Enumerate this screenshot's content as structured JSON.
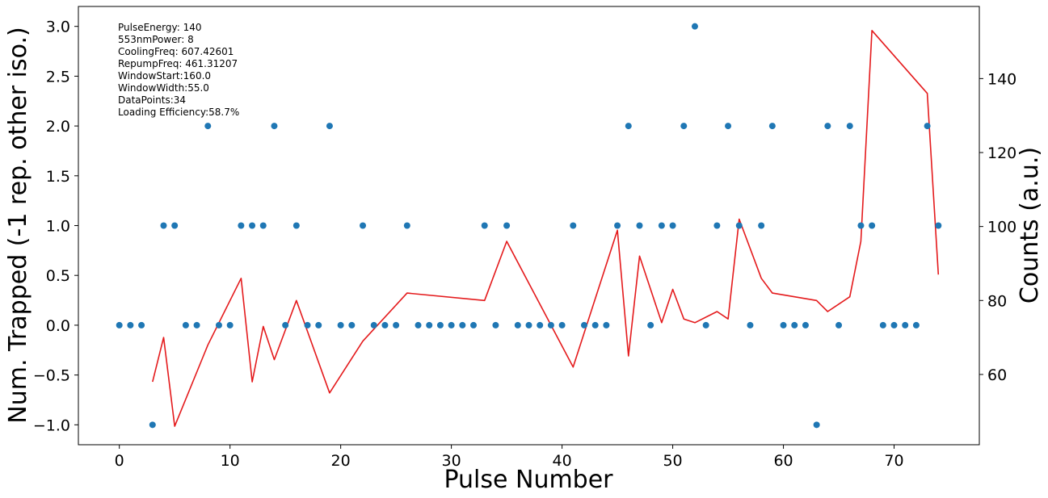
{
  "chart_data": {
    "type": "scatter",
    "xlabel": "Pulse Number",
    "ylabel": "Num. Trapped (-1 rep. other iso.)",
    "ylabel_right": "Counts (a.u.)",
    "xlim": [
      -3.7,
      77.7
    ],
    "ylim": [
      -1.2,
      3.2
    ],
    "ylim_right": [
      41,
      159.5
    ],
    "x_ticks": [
      0,
      10,
      20,
      30,
      40,
      50,
      60,
      70
    ],
    "y_ticks": [
      -1.0,
      -0.5,
      0.0,
      0.5,
      1.0,
      1.5,
      2.0,
      2.5,
      3.0
    ],
    "y_tick_labels": [
      "−1.0",
      "−0.5",
      "0.0",
      "0.5",
      "1.0",
      "1.5",
      "2.0",
      "2.5",
      "3.0"
    ],
    "y_right_ticks": [
      60,
      80,
      100,
      120,
      140
    ],
    "grid": false,
    "annotations": [
      "PulseEnergy: 140",
      "553nmPower: 8",
      "CoolingFreq: 607.42601",
      "RepumpFreq: 461.31207",
      "WindowStart:160.0",
      "WindowWidth:55.0",
      "DataPoints:34",
      "Loading Efficiency:58.7%"
    ],
    "series": [
      {
        "axis": "left",
        "kind": "scatter",
        "color": "#1f77b4",
        "x": [
          0,
          1,
          2,
          3,
          4,
          5,
          6,
          7,
          8,
          9,
          10,
          11,
          12,
          13,
          14,
          15,
          16,
          17,
          18,
          19,
          20,
          21,
          22,
          23,
          24,
          25,
          26,
          27,
          28,
          29,
          30,
          31,
          32,
          33,
          34,
          35,
          36,
          37,
          38,
          39,
          40,
          41,
          42,
          43,
          44,
          45,
          46,
          47,
          48,
          49,
          50,
          51,
          52,
          53,
          54,
          55,
          56,
          57,
          58,
          59,
          60,
          61,
          62,
          63,
          64,
          65,
          66,
          67,
          68,
          69,
          70,
          71,
          72,
          73,
          74
        ],
        "y": [
          0,
          0,
          0,
          -1,
          1,
          1,
          0,
          0,
          2,
          0,
          0,
          1,
          1,
          1,
          2,
          0,
          1,
          0,
          0,
          2,
          0,
          0,
          1,
          0,
          0,
          0,
          1,
          0,
          0,
          0,
          0,
          0,
          0,
          1,
          0,
          1,
          0,
          0,
          0,
          0,
          0,
          1,
          0,
          0,
          0,
          1,
          2,
          1,
          0,
          1,
          1,
          2,
          3,
          0,
          1,
          2,
          1,
          0,
          1,
          2,
          0,
          0,
          0,
          -1,
          2,
          0,
          2,
          1,
          1,
          0,
          0,
          0,
          0,
          2,
          1
        ]
      },
      {
        "axis": "right",
        "kind": "line",
        "color": "#e41a1c",
        "x": [
          3,
          4,
          5,
          8,
          11,
          12,
          13,
          14,
          16,
          19,
          22,
          26,
          33,
          35,
          41,
          45,
          46,
          47,
          49,
          50,
          51,
          52,
          54,
          55,
          56,
          58,
          59,
          63,
          64,
          66,
          67,
          68,
          73,
          74
        ],
        "y": [
          58,
          70,
          46,
          68,
          86,
          58,
          73,
          64,
          80,
          55,
          69,
          82,
          80,
          96,
          62,
          99,
          65,
          92,
          74,
          83,
          75,
          74,
          77,
          75,
          102,
          86,
          82,
          80,
          77,
          81,
          96,
          153,
          136,
          87
        ]
      }
    ]
  }
}
